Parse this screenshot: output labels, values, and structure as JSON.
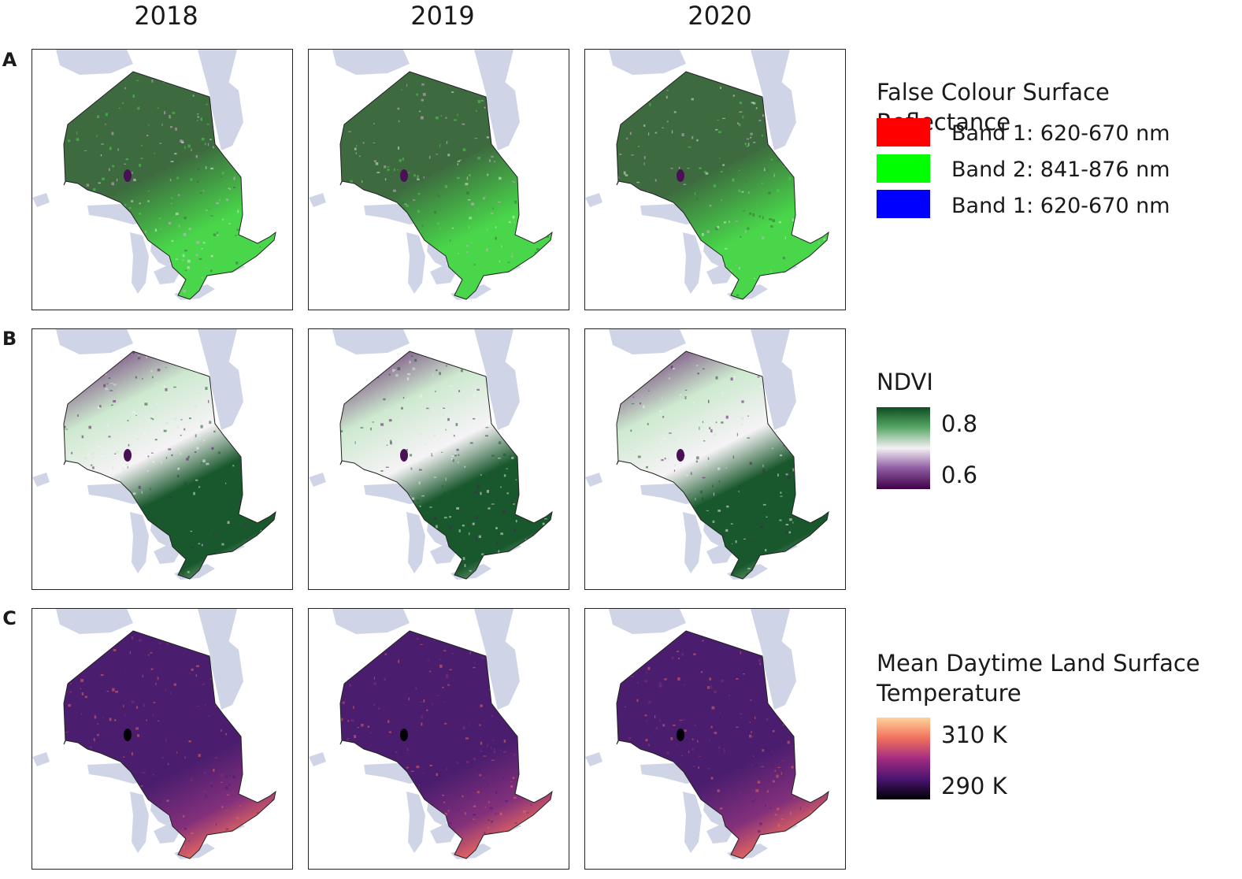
{
  "columns": [
    "2018",
    "2019",
    "2020"
  ],
  "rows": [
    {
      "label": "A",
      "layer": "false-colour"
    },
    {
      "label": "B",
      "layer": "ndvi"
    },
    {
      "label": "C",
      "layer": "lst"
    }
  ],
  "legends": {
    "false_colour": {
      "title": "False Colour Surface Reflectance",
      "items": [
        {
          "label": "Band 1: 620-670 nm",
          "color": "#ff0000"
        },
        {
          "label": "Band 2: 841-876 nm",
          "color": "#00ff00"
        },
        {
          "label": "Band 1: 620-670 nm",
          "color": "#0000ff"
        }
      ]
    },
    "ndvi": {
      "title": "NDVI",
      "max_label": "0.8",
      "min_label": "0.6",
      "colors": [
        "#0d4d22",
        "#5aa867",
        "#f4f1f4",
        "#8d5aa0",
        "#3f0048"
      ]
    },
    "lst": {
      "title_line1": "Mean Daytime Land Surface",
      "title_line2": "Temperature",
      "max_label": "310 K",
      "min_label": "290 K",
      "colors": [
        "#fed39b",
        "#f2715c",
        "#a32c80",
        "#4b1471",
        "#000004"
      ]
    }
  },
  "map_colors": {
    "water": "#cfd5e6",
    "false_colour": {
      "north": "#3d6b3f",
      "south": "#49d64a",
      "bright": "#d9ecd6",
      "pink": "#dca9d8"
    },
    "ndvi": {
      "dark": "#18582c",
      "mid": "#cde9cf",
      "purple": "#5b1765",
      "white": "#f6f3f6"
    },
    "lst": {
      "base": "#4a1d6e",
      "mid": "#83307b",
      "warm": "#e8685f",
      "hot": "#fbb484"
    }
  }
}
